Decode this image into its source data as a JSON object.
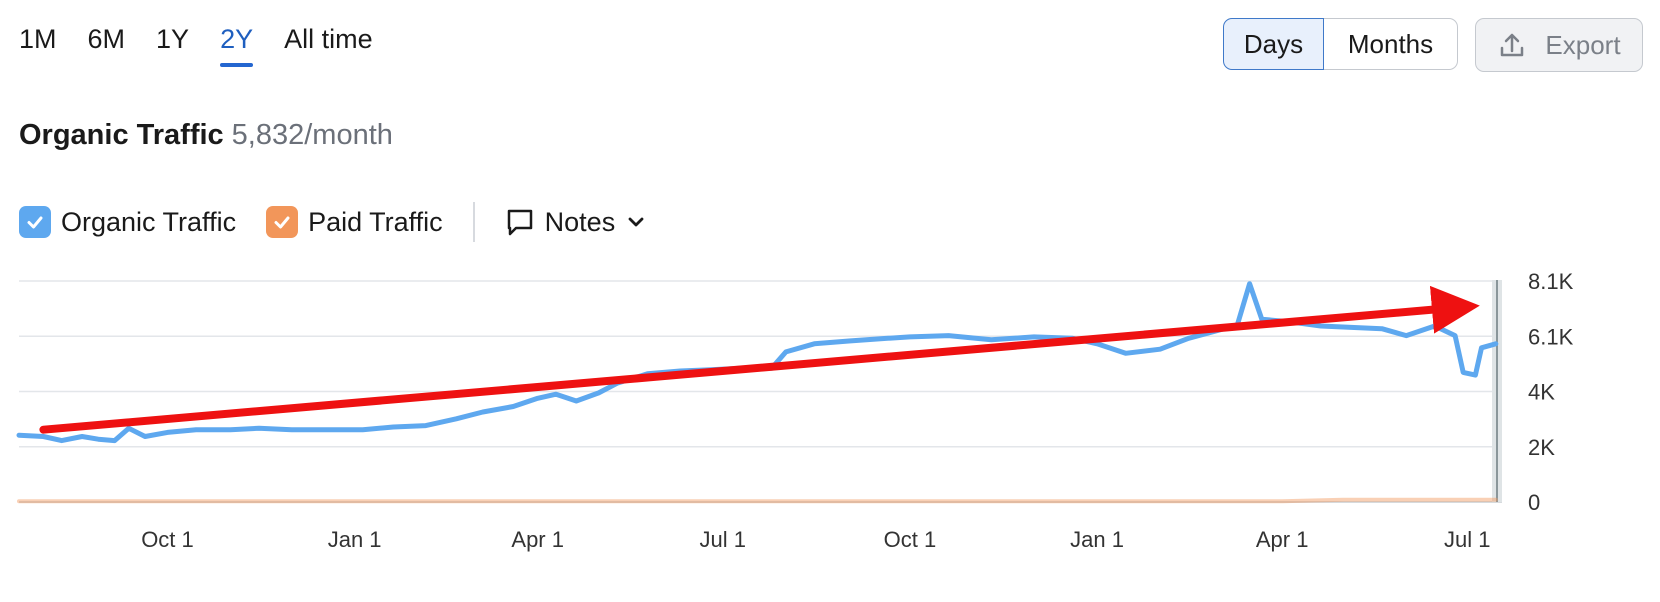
{
  "periods": [
    {
      "label": "1M",
      "active": false
    },
    {
      "label": "6M",
      "active": false
    },
    {
      "label": "1Y",
      "active": false
    },
    {
      "label": "2Y",
      "active": true
    },
    {
      "label": "All time",
      "active": false
    }
  ],
  "granularity": {
    "days_label": "Days",
    "months_label": "Months",
    "selected": "Days"
  },
  "export_label": "Export",
  "headline": {
    "title": "Organic Traffic",
    "value": "5,832/month"
  },
  "legend": {
    "organic": {
      "label": "Organic Traffic",
      "checked": true,
      "color": "#5ea8ef"
    },
    "paid": {
      "label": "Paid Traffic",
      "checked": true,
      "color": "#f2965a"
    }
  },
  "notes_label": "Notes",
  "chart_data": {
    "type": "line",
    "x_tick_labels": [
      "Oct 1",
      "Jan 1",
      "Apr 1",
      "Jul 1",
      "Oct 1",
      "Jan 1",
      "Apr 1",
      "Jul 1"
    ],
    "y_tick_labels": [
      "8.1K",
      "6.1K",
      "4K",
      "2K",
      "0"
    ],
    "ylim": [
      0,
      8100
    ],
    "grid": true,
    "series": [
      {
        "name": "Organic Traffic",
        "color": "#5ea8ef",
        "points": [
          [
            "2022-07-20",
            2450
          ],
          [
            "2022-08-01",
            2400
          ],
          [
            "2022-08-10",
            2250
          ],
          [
            "2022-08-20",
            2400
          ],
          [
            "2022-08-28",
            2300
          ],
          [
            "2022-09-05",
            2250
          ],
          [
            "2022-09-12",
            2700
          ],
          [
            "2022-09-20",
            2400
          ],
          [
            "2022-10-01",
            2550
          ],
          [
            "2022-10-15",
            2650
          ],
          [
            "2022-11-01",
            2650
          ],
          [
            "2022-11-15",
            2700
          ],
          [
            "2022-12-01",
            2650
          ],
          [
            "2022-12-20",
            2650
          ],
          [
            "2023-01-05",
            2650
          ],
          [
            "2023-01-20",
            2750
          ],
          [
            "2023-02-05",
            2800
          ],
          [
            "2023-02-20",
            3050
          ],
          [
            "2023-03-05",
            3300
          ],
          [
            "2023-03-20",
            3500
          ],
          [
            "2023-04-01",
            3800
          ],
          [
            "2023-04-10",
            3950
          ],
          [
            "2023-04-20",
            3700
          ],
          [
            "2023-05-01",
            4000
          ],
          [
            "2023-05-10",
            4350
          ],
          [
            "2023-05-25",
            4700
          ],
          [
            "2023-06-10",
            4800
          ],
          [
            "2023-06-25",
            4850
          ],
          [
            "2023-07-10",
            4900
          ],
          [
            "2023-07-25",
            4900
          ],
          [
            "2023-08-01",
            5500
          ],
          [
            "2023-08-15",
            5800
          ],
          [
            "2023-09-01",
            5900
          ],
          [
            "2023-09-20",
            6000
          ],
          [
            "2023-10-01",
            6050
          ],
          [
            "2023-10-20",
            6100
          ],
          [
            "2023-11-10",
            5950
          ],
          [
            "2023-12-01",
            6050
          ],
          [
            "2023-12-20",
            6000
          ],
          [
            "2024-01-01",
            5800
          ],
          [
            "2024-01-15",
            5450
          ],
          [
            "2024-02-01",
            5600
          ],
          [
            "2024-02-15",
            6000
          ],
          [
            "2024-03-01",
            6300
          ],
          [
            "2024-03-10",
            6500
          ],
          [
            "2024-03-16",
            8000
          ],
          [
            "2024-03-22",
            6700
          ],
          [
            "2024-04-05",
            6600
          ],
          [
            "2024-04-20",
            6450
          ],
          [
            "2024-05-05",
            6400
          ],
          [
            "2024-05-20",
            6350
          ],
          [
            "2024-06-01",
            6100
          ],
          [
            "2024-06-15",
            6450
          ],
          [
            "2024-06-25",
            6100
          ],
          [
            "2024-06-29",
            4750
          ],
          [
            "2024-07-05",
            4650
          ],
          [
            "2024-07-08",
            5650
          ],
          [
            "2024-07-15",
            5800
          ]
        ]
      },
      {
        "name": "Paid Traffic",
        "color": "#f2965a",
        "points": [
          [
            "2022-07-20",
            30
          ],
          [
            "2024-04-01",
            30
          ],
          [
            "2024-05-01",
            80
          ],
          [
            "2024-07-15",
            80
          ]
        ]
      }
    ],
    "annotation": {
      "type": "trend-arrow",
      "color": "#ee1111",
      "from": [
        "2022-08-01",
        2650
      ],
      "to": [
        "2024-07-15",
        7250
      ]
    }
  }
}
